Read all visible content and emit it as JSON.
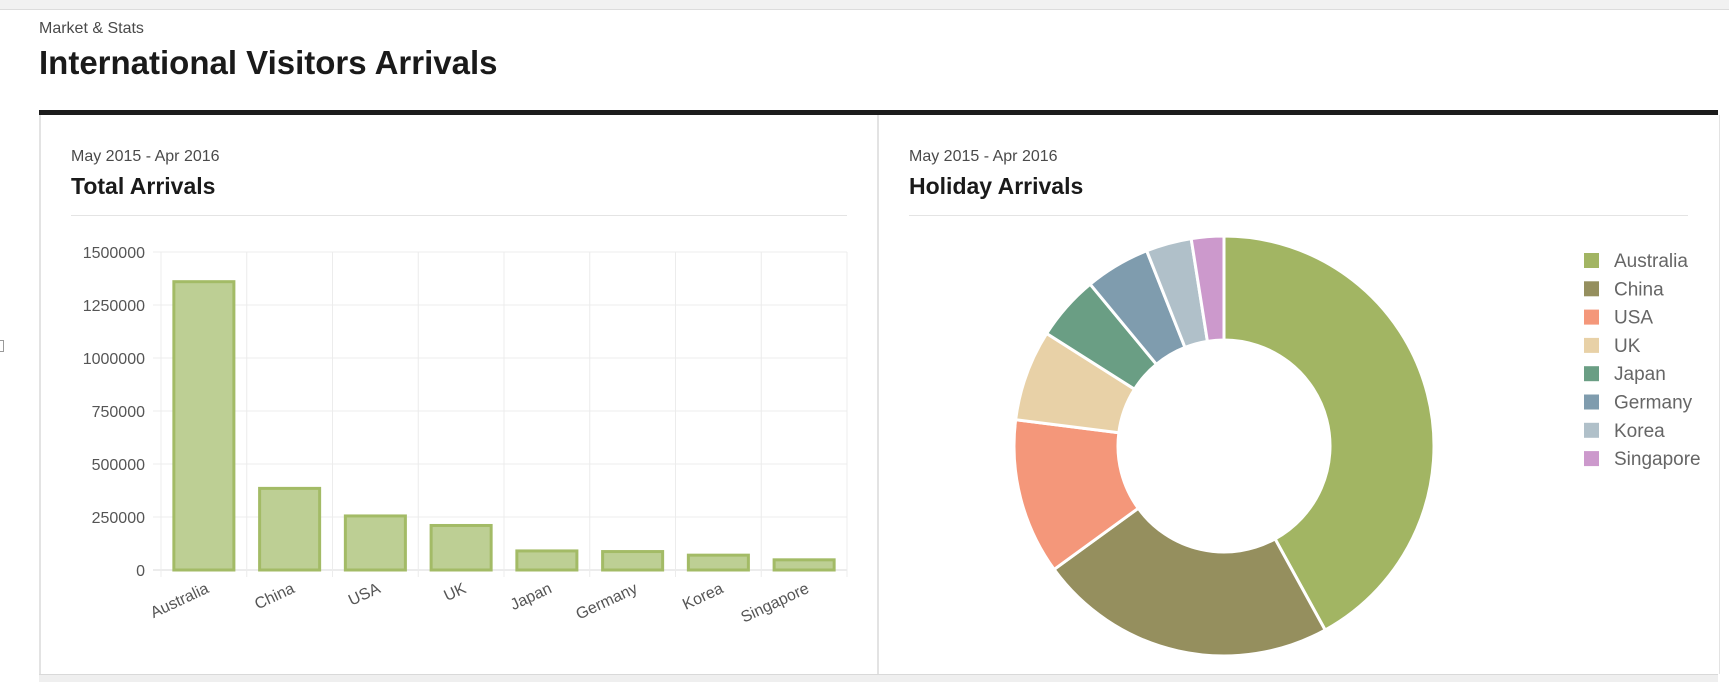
{
  "header": {
    "breadcrumb": "Market & Stats",
    "title": "International Visitors Arrivals"
  },
  "cards": [
    {
      "subtitle": "May 2015 - Apr 2016",
      "title": "Total Arrivals"
    },
    {
      "subtitle": "May 2015 - Apr 2016",
      "title": "Holiday Arrivals"
    }
  ],
  "chart_data": [
    {
      "type": "bar",
      "title": "Total Arrivals",
      "categories": [
        "Australia",
        "China",
        "USA",
        "UK",
        "Japan",
        "Germany",
        "Korea",
        "Singapore"
      ],
      "values": [
        1360000,
        385000,
        255000,
        210000,
        90000,
        87000,
        70000,
        48000
      ],
      "y_ticks": [
        "0",
        "250000",
        "500000",
        "750000",
        "1000000",
        "1250000",
        "1500000"
      ],
      "ylim": [
        0,
        1500000
      ],
      "grid": true,
      "bar_color": "#bdcf94",
      "bar_border": "#a3bb66"
    },
    {
      "type": "pie",
      "title": "Holiday Arrivals",
      "donut": true,
      "labels": [
        "Australia",
        "China",
        "USA",
        "UK",
        "Japan",
        "Germany",
        "Korea",
        "Singapore"
      ],
      "values": [
        42,
        23,
        12,
        7,
        5,
        5,
        3.5,
        2.5
      ],
      "colors": [
        "#a2b563",
        "#958f5e",
        "#f4977a",
        "#e8d1a7",
        "#6a9e84",
        "#7f9cae",
        "#b0c0c9",
        "#cc99cc"
      ],
      "legend_position": "right"
    }
  ]
}
